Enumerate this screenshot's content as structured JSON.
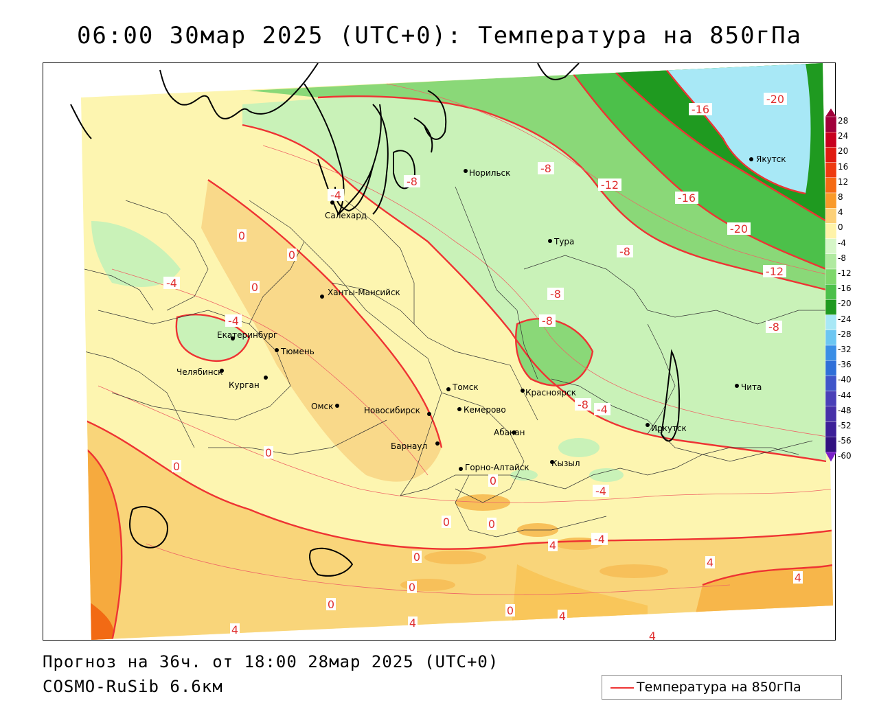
{
  "title": "06:00 30мар 2025 (UTC+0): Температура на 850гПа",
  "footer": {
    "forecast": "Прогноз на 36ч. от 18:00 28мар 2025 (UTC+0)",
    "model": "COSMO-RuSib 6.6км"
  },
  "legend": {
    "label": "Температура на 850гПа",
    "line_color": "#ee3333"
  },
  "colorbar": {
    "labels": [
      "28",
      "24",
      "20",
      "16",
      "12",
      "8",
      "4",
      "0",
      "-4",
      "-8",
      "-12",
      "-16",
      "-20",
      "-24",
      "-28",
      "-32",
      "-36",
      "-40",
      "-44",
      "-48",
      "-52",
      "-56",
      "-60"
    ],
    "colors": [
      "#a0003a",
      "#c8001e",
      "#e01a10",
      "#ee3a10",
      "#f56a14",
      "#f99a2a",
      "#fcd077",
      "#fff3a8",
      "#d6f7c8",
      "#b0eaa0",
      "#7fd86c",
      "#4cc04a",
      "#1f9a20",
      "#a8e8f6",
      "#6cc6f2",
      "#3a8ee6",
      "#2f6fd8",
      "#3f55c9",
      "#4a40b8",
      "#4630a8",
      "#3c1f98",
      "#301080",
      "#7a20c8"
    ]
  },
  "isotherm_labels": [
    "-20",
    "-20",
    "-16",
    "-16",
    "-12",
    "-12",
    "-8",
    "-8",
    "-8",
    "-8",
    "-8",
    "-8",
    "-8",
    "-4",
    "-4",
    "-4",
    "-4",
    "-4",
    "-4",
    "0",
    "0",
    "0",
    "0",
    "0",
    "0",
    "0",
    "0",
    "0",
    "0",
    "0",
    "0",
    "4",
    "4",
    "4",
    "4",
    "4",
    "4",
    "4"
  ],
  "cities": [
    {
      "name": "Якутск"
    },
    {
      "name": "Норильск"
    },
    {
      "name": "Салехард"
    },
    {
      "name": "Тура"
    },
    {
      "name": "Ханты-Мансийск"
    },
    {
      "name": "Екатеринбург"
    },
    {
      "name": "Тюмень"
    },
    {
      "name": "Челябинск"
    },
    {
      "name": "Курган"
    },
    {
      "name": "Омск"
    },
    {
      "name": "Новосибирск"
    },
    {
      "name": "Томск"
    },
    {
      "name": "Кемерово"
    },
    {
      "name": "Красноярск"
    },
    {
      "name": "Барнаул"
    },
    {
      "name": "Абакан"
    },
    {
      "name": "Горно-Алтайск"
    },
    {
      "name": "Кызыл"
    },
    {
      "name": "Иркутск"
    },
    {
      "name": "Чита"
    }
  ]
}
